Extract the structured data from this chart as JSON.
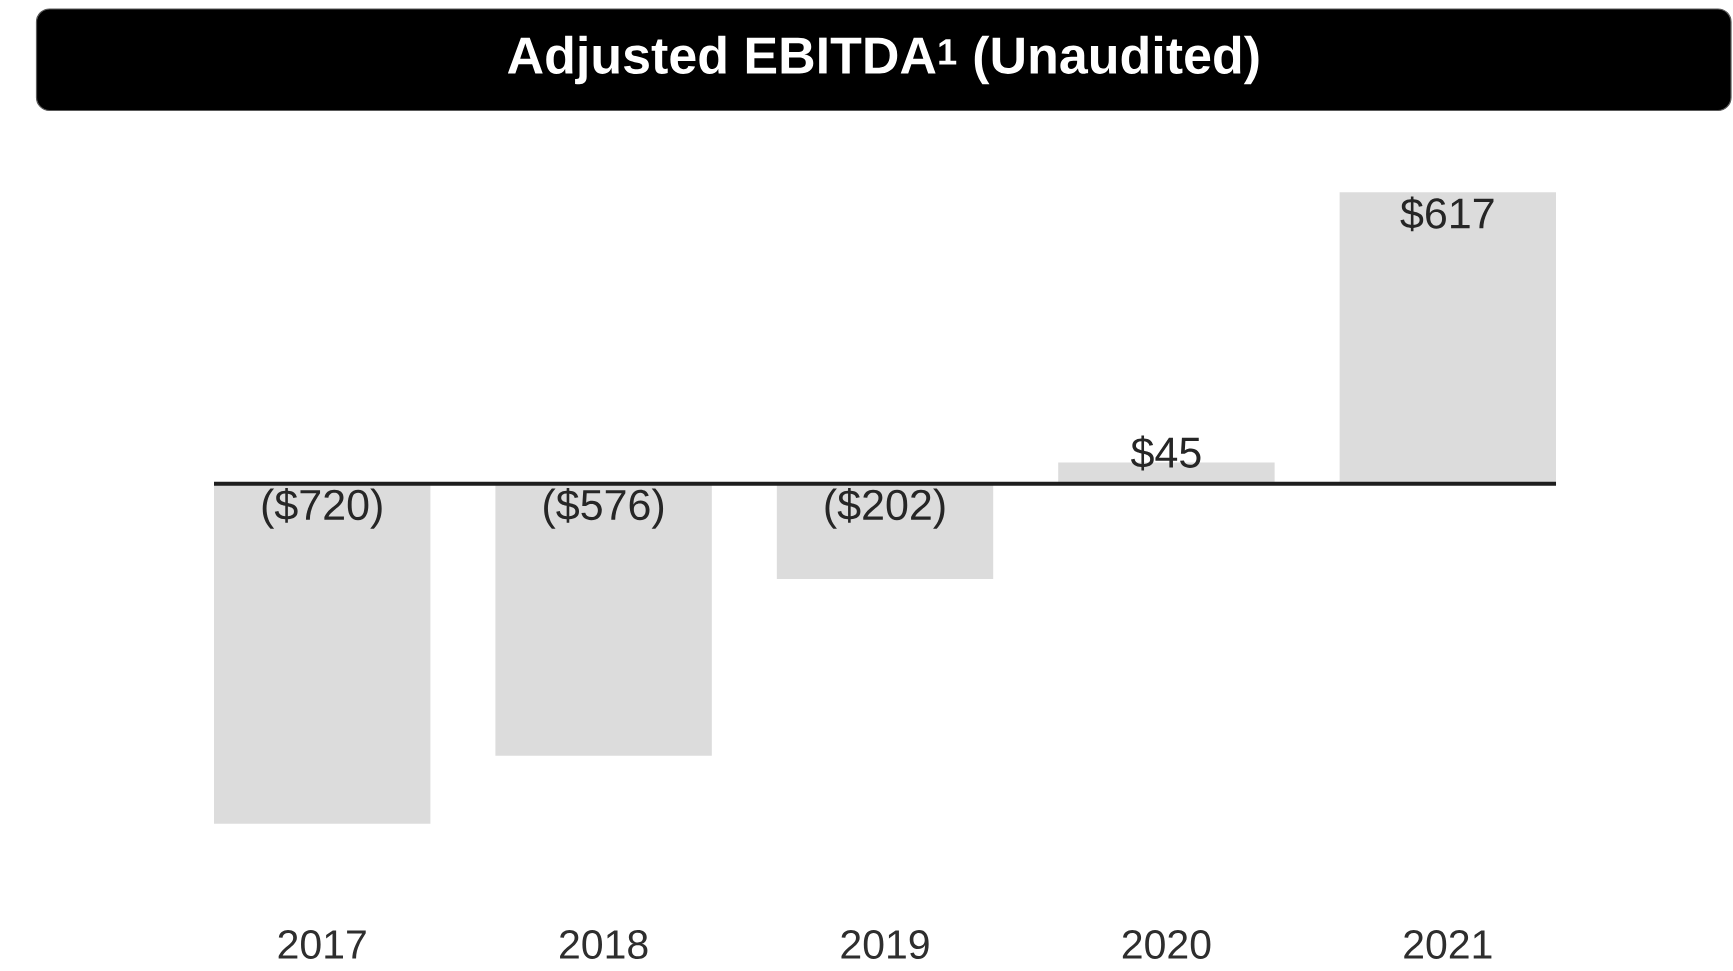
{
  "chart_data": {
    "type": "bar",
    "title": "Adjusted EBITDA$^{1}$ (Unaudited)",
    "categories": [
      "2017",
      "2018",
      "2019",
      "2020",
      "2021"
    ],
    "values": [
      -720,
      -576,
      -202,
      45,
      617
    ],
    "value_labels": [
      "($720)",
      "($576)",
      "($202)",
      "$45",
      "$617"
    ],
    "color": "#dcdcdc",
    "tick_labels": "x"
  }
}
